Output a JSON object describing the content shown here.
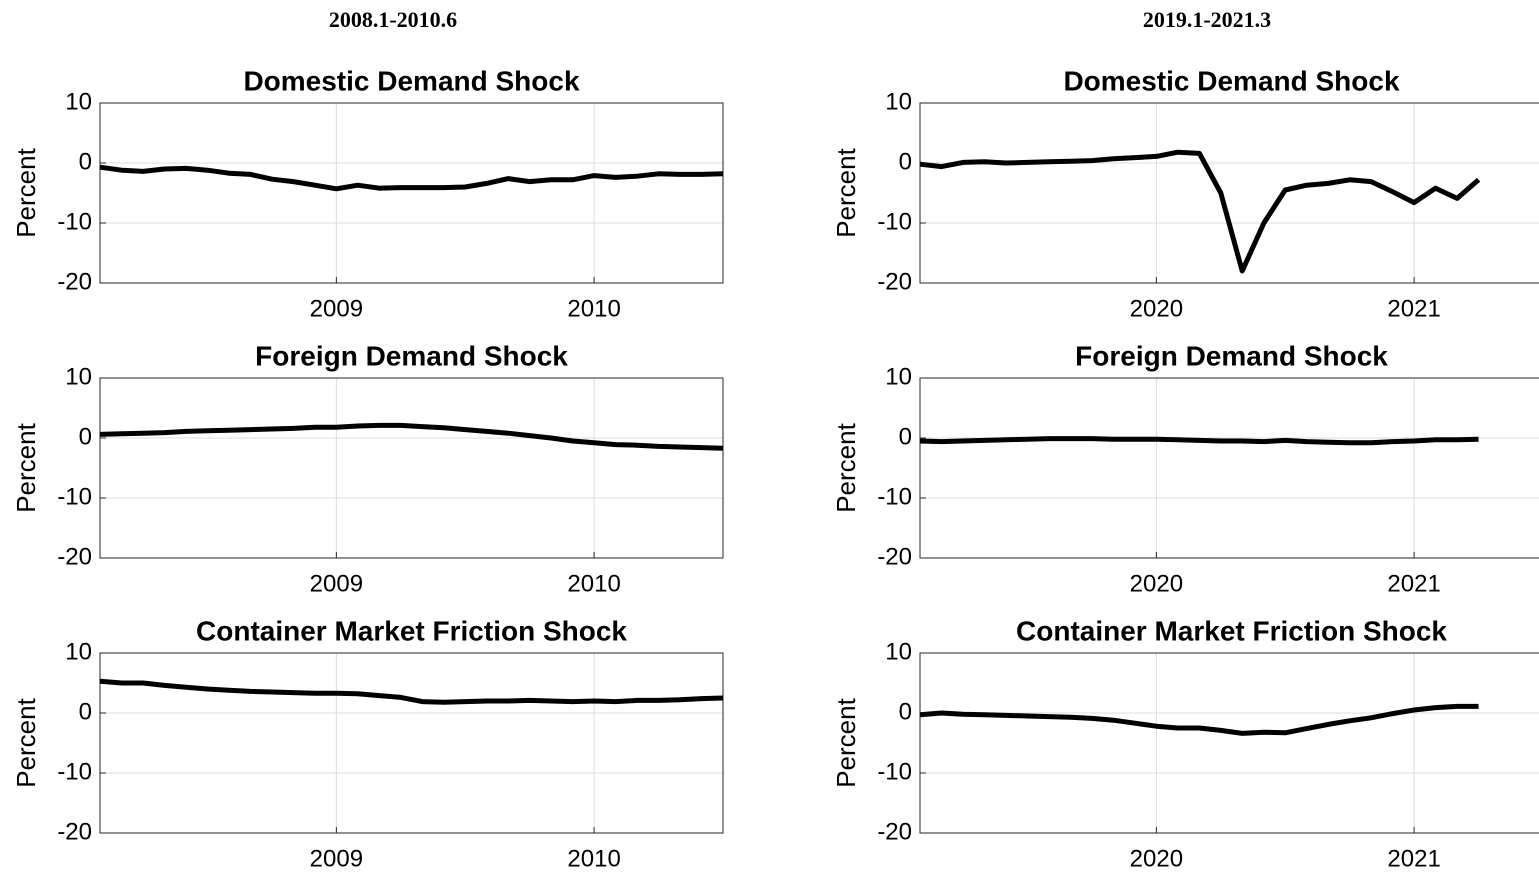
{
  "column_titles": [
    "2008.1-2010.6",
    "2019.1-2021.3"
  ],
  "chart_data": [
    {
      "type": "line",
      "title": "Domestic Demand Shock",
      "ylabel": "Percent",
      "color": "#000000",
      "grid": true,
      "xlim": [
        2008.083,
        2010.5
      ],
      "xticks": [
        2009,
        2010
      ],
      "ylim": [
        -20,
        10
      ],
      "yticks": [
        -20,
        -10,
        0,
        10
      ],
      "x": [
        2008.083,
        2008.167,
        2008.25,
        2008.333,
        2008.417,
        2008.5,
        2008.583,
        2008.667,
        2008.75,
        2008.833,
        2008.917,
        2009,
        2009.083,
        2009.167,
        2009.25,
        2009.333,
        2009.417,
        2009.5,
        2009.583,
        2009.667,
        2009.75,
        2009.833,
        2009.917,
        2010,
        2010.083,
        2010.167,
        2010.25,
        2010.333,
        2010.417,
        2010.5
      ],
      "values": [
        -0.7,
        -1.2,
        -1.4,
        -1.0,
        -0.9,
        -1.2,
        -1.7,
        -1.9,
        -2.7,
        -3.1,
        -3.7,
        -4.3,
        -3.7,
        -4.2,
        -4.1,
        -4.1,
        -4.1,
        -4.0,
        -3.4,
        -2.6,
        -3.1,
        -2.8,
        -2.8,
        -2.1,
        -2.4,
        -2.2,
        -1.8,
        -1.9,
        -1.9,
        -1.8
      ]
    },
    {
      "type": "line",
      "title": "Foreign Demand Shock",
      "ylabel": "Percent",
      "color": "#000000",
      "grid": true,
      "xlim": [
        2008.083,
        2010.5
      ],
      "xticks": [
        2009,
        2010
      ],
      "ylim": [
        -20,
        10
      ],
      "yticks": [
        -20,
        -10,
        0,
        10
      ],
      "x": [
        2008.083,
        2008.167,
        2008.25,
        2008.333,
        2008.417,
        2008.5,
        2008.583,
        2008.667,
        2008.75,
        2008.833,
        2008.917,
        2009,
        2009.083,
        2009.167,
        2009.25,
        2009.333,
        2009.417,
        2009.5,
        2009.583,
        2009.667,
        2009.75,
        2009.833,
        2009.917,
        2010,
        2010.083,
        2010.167,
        2010.25,
        2010.333,
        2010.417,
        2010.5
      ],
      "values": [
        0.6,
        0.7,
        0.8,
        0.9,
        1.1,
        1.2,
        1.3,
        1.4,
        1.5,
        1.6,
        1.8,
        1.8,
        2.0,
        2.1,
        2.1,
        1.9,
        1.7,
        1.4,
        1.1,
        0.8,
        0.4,
        0.0,
        -0.5,
        -0.8,
        -1.1,
        -1.2,
        -1.4,
        -1.5,
        -1.6,
        -1.7
      ]
    },
    {
      "type": "line",
      "title": "Container Market Friction Shock",
      "ylabel": "Percent",
      "color": "#000000",
      "grid": true,
      "xlim": [
        2008.083,
        2010.5
      ],
      "xticks": [
        2009,
        2010
      ],
      "ylim": [
        -20,
        10
      ],
      "yticks": [
        -20,
        -10,
        0,
        10
      ],
      "x": [
        2008.083,
        2008.167,
        2008.25,
        2008.333,
        2008.417,
        2008.5,
        2008.583,
        2008.667,
        2008.75,
        2008.833,
        2008.917,
        2009,
        2009.083,
        2009.167,
        2009.25,
        2009.333,
        2009.417,
        2009.5,
        2009.583,
        2009.667,
        2009.75,
        2009.833,
        2009.917,
        2010,
        2010.083,
        2010.167,
        2010.25,
        2010.333,
        2010.417,
        2010.5
      ],
      "values": [
        5.3,
        5.0,
        5.0,
        4.6,
        4.3,
        4.0,
        3.8,
        3.6,
        3.5,
        3.4,
        3.3,
        3.3,
        3.2,
        2.9,
        2.6,
        1.9,
        1.8,
        1.9,
        2.0,
        2.0,
        2.1,
        2.0,
        1.9,
        2.0,
        1.9,
        2.1,
        2.1,
        2.2,
        2.4,
        2.5
      ]
    },
    {
      "type": "line",
      "title": "Domestic Demand Shock",
      "ylabel": "Percent",
      "color": "#000000",
      "grid": true,
      "xlim": [
        2019.083,
        2021.5
      ],
      "xticks": [
        2020,
        2021
      ],
      "ylim": [
        -20,
        10
      ],
      "yticks": [
        -20,
        -10,
        0,
        10
      ],
      "x": [
        2019.083,
        2019.167,
        2019.25,
        2019.333,
        2019.417,
        2019.5,
        2019.583,
        2019.667,
        2019.75,
        2019.833,
        2019.917,
        2020,
        2020.083,
        2020.167,
        2020.25,
        2020.333,
        2020.417,
        2020.5,
        2020.583,
        2020.667,
        2020.75,
        2020.833,
        2020.917,
        2021,
        2021.083,
        2021.167,
        2021.25
      ],
      "values": [
        -0.2,
        -0.6,
        0.1,
        0.2,
        0.0,
        0.1,
        0.2,
        0.3,
        0.4,
        0.7,
        0.9,
        1.1,
        1.8,
        1.6,
        -5.0,
        -18.0,
        -10.0,
        -4.5,
        -3.7,
        -3.4,
        -2.8,
        -3.1,
        -4.8,
        -6.6,
        -4.2,
        -5.9,
        -2.8
      ]
    },
    {
      "type": "line",
      "title": "Foreign Demand Shock",
      "ylabel": "Percent",
      "color": "#000000",
      "grid": true,
      "xlim": [
        2019.083,
        2021.5
      ],
      "xticks": [
        2020,
        2021
      ],
      "ylim": [
        -20,
        10
      ],
      "yticks": [
        -20,
        -10,
        0,
        10
      ],
      "x": [
        2019.083,
        2019.167,
        2019.25,
        2019.333,
        2019.417,
        2019.5,
        2019.583,
        2019.667,
        2019.75,
        2019.833,
        2019.917,
        2020,
        2020.083,
        2020.167,
        2020.25,
        2020.333,
        2020.417,
        2020.5,
        2020.583,
        2020.667,
        2020.75,
        2020.833,
        2020.917,
        2021,
        2021.083,
        2021.167,
        2021.25
      ],
      "values": [
        -0.5,
        -0.6,
        -0.5,
        -0.4,
        -0.3,
        -0.2,
        -0.1,
        -0.1,
        -0.1,
        -0.2,
        -0.2,
        -0.2,
        -0.3,
        -0.4,
        -0.5,
        -0.5,
        -0.6,
        -0.4,
        -0.6,
        -0.7,
        -0.8,
        -0.8,
        -0.6,
        -0.5,
        -0.3,
        -0.3,
        -0.2
      ]
    },
    {
      "type": "line",
      "title": "Container Market Friction Shock",
      "ylabel": "Percent",
      "color": "#000000",
      "grid": true,
      "xlim": [
        2019.083,
        2021.5
      ],
      "xticks": [
        2020,
        2021
      ],
      "ylim": [
        -20,
        10
      ],
      "yticks": [
        -20,
        -10,
        0,
        10
      ],
      "x": [
        2019.083,
        2019.167,
        2019.25,
        2019.333,
        2019.417,
        2019.5,
        2019.583,
        2019.667,
        2019.75,
        2019.833,
        2019.917,
        2020,
        2020.083,
        2020.167,
        2020.25,
        2020.333,
        2020.417,
        2020.5,
        2020.583,
        2020.667,
        2020.75,
        2020.833,
        2020.917,
        2021,
        2021.083,
        2021.167,
        2021.25
      ],
      "values": [
        -0.3,
        0.0,
        -0.2,
        -0.3,
        -0.4,
        -0.5,
        -0.6,
        -0.7,
        -0.9,
        -1.2,
        -1.7,
        -2.2,
        -2.5,
        -2.5,
        -2.9,
        -3.4,
        -3.2,
        -3.3,
        -2.6,
        -1.9,
        -1.3,
        -0.8,
        -0.1,
        0.5,
        0.9,
        1.1,
        1.1
      ]
    }
  ]
}
